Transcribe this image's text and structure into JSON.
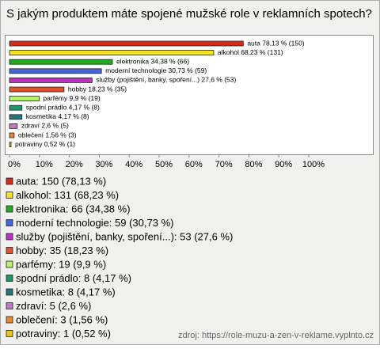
{
  "chart_data": {
    "type": "hbar",
    "title": "S jakým produktem máte spojené mužské role v reklamních spotech?",
    "categories": [
      "auta",
      "alkohol",
      "elektronika",
      "moderní technologie",
      "služby (pojištění, banky, spoření...)",
      "hobby",
      "parfémy",
      "spodní prádlo",
      "kosmetika",
      "zdraví",
      "oblečení",
      "potraviny"
    ],
    "values": [
      78.13,
      68.23,
      34.38,
      30.73,
      27.6,
      18.23,
      9.9,
      4.17,
      4.17,
      2.6,
      1.56,
      0.52
    ],
    "value_labels": [
      "auta 78,13 % (150)",
      "alkohol 68,23 % (131)",
      "elektronika 34,38 % (66)",
      "moderní technologie 30,73 % (59)",
      "služby (pojištění, banky, spoření...) 27,6 % (53)",
      "hobby 18,23 % (35)",
      "parfémy 9,9 % (19)",
      "spodní prádlo 4,17 % (8)",
      "kosmetika 4,17 % (8)",
      "zdraví 2,6 % (5)",
      "oblečení 1,56 % (3)",
      "potraviny 0,52 % (1)"
    ],
    "legend_labels": [
      "auta: 150 (78,13 %)",
      "alkohol: 131 (68,23 %)",
      "elektronika: 66 (34,38 %)",
      "moderní technologie: 59 (30,73 %)",
      "služby (pojištění, banky, spoření...): 53 (27,6 %)",
      "hobby: 35 (18,23 %)",
      "parfémy: 19 (9,9 %)",
      "spodní prádlo: 8 (4,17 %)",
      "kosmetika: 8 (4,17 %)",
      "zdraví: 5 (2,6 %)",
      "oblečení: 3 (1,56 %)",
      "potraviny: 1 (0,52 %)"
    ],
    "colors": [
      "#d42a1a",
      "#f2e224",
      "#22aa22",
      "#4466dd",
      "#c030c8",
      "#e2522a",
      "#b8f070",
      "#22956a",
      "#23777a",
      "#c078c8",
      "#e88a2a",
      "#e6c21a"
    ],
    "xlim": [
      0,
      100
    ],
    "xticks": [
      {
        "value": 0,
        "label": "0%"
      },
      {
        "value": 10,
        "label": "10%"
      },
      {
        "value": 20,
        "label": "20%"
      },
      {
        "value": 30,
        "label": "30%"
      },
      {
        "value": 40,
        "label": "40%"
      },
      {
        "value": 50,
        "label": "50%"
      },
      {
        "value": 60,
        "label": "60%"
      },
      {
        "value": 70,
        "label": "70%"
      },
      {
        "value": 80,
        "label": "80%"
      },
      {
        "value": 90,
        "label": "90%"
      },
      {
        "value": 100,
        "label": "100%"
      }
    ],
    "source": "zdroj: https://role-muzu-a-zen-v-reklame.vyplnto.cz"
  }
}
